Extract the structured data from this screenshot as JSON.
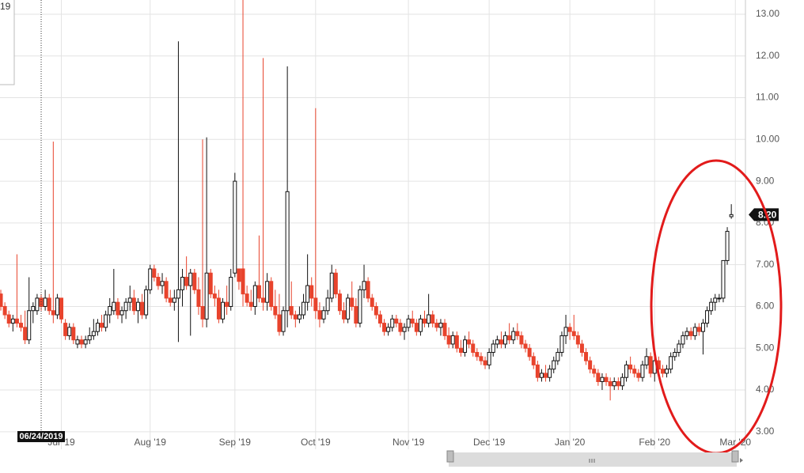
{
  "chart_data": {
    "type": "candlestick",
    "xlim": [
      -0.2,
      184.5
    ],
    "ylim": [
      2.58,
      13.34
    ],
    "xticks": [
      {
        "value": 15,
        "label": "Jul '19"
      },
      {
        "value": 37,
        "label": "Aug '19"
      },
      {
        "value": 58,
        "label": "Sep '19"
      },
      {
        "value": 78,
        "label": "Oct '19"
      },
      {
        "value": 101,
        "label": "Nov '19"
      },
      {
        "value": 121,
        "label": "Dec '19"
      },
      {
        "value": 141,
        "label": "Jan '20"
      },
      {
        "value": 162,
        "label": "Feb '20"
      },
      {
        "value": 182,
        "label": "Mar '20"
      }
    ],
    "yticks": [
      {
        "value": 3,
        "label": "3.00"
      },
      {
        "value": 4,
        "label": "4.00"
      },
      {
        "value": 5,
        "label": "5.00"
      },
      {
        "value": 6,
        "label": "6.00"
      },
      {
        "value": 7,
        "label": "7.00"
      },
      {
        "value": 8,
        "label": "8.00"
      },
      {
        "value": 9,
        "label": "9.00"
      },
      {
        "value": 10,
        "label": "10.00"
      },
      {
        "value": 11,
        "label": "11.00"
      },
      {
        "value": 12,
        "label": "12.00"
      },
      {
        "value": 13,
        "label": "13.00"
      }
    ],
    "grid": true,
    "up_color": "#ffffff",
    "down_color": "#e8432c",
    "last_price": {
      "value": 8.2,
      "label": "8.20"
    },
    "crosshair": {
      "x": 10,
      "label": "06/24/2019"
    },
    "info_box_text": "19",
    "candles": [
      [
        6.3,
        6.4,
        5.9,
        6.0
      ],
      [
        6.0,
        6.1,
        5.7,
        5.8
      ],
      [
        5.8,
        5.9,
        5.5,
        5.6
      ],
      [
        5.6,
        5.8,
        5.4,
        5.7
      ],
      [
        5.7,
        7.25,
        5.5,
        5.6
      ],
      [
        5.6,
        5.8,
        5.4,
        5.5
      ],
      [
        5.5,
        5.9,
        5.1,
        5.2
      ],
      [
        5.2,
        6.7,
        5.1,
        5.9
      ],
      [
        5.9,
        6.1,
        5.6,
        6.0
      ],
      [
        5.9,
        6.3,
        5.8,
        6.2
      ],
      [
        6.2,
        6.3,
        5.9,
        6.0
      ],
      [
        6.0,
        6.4,
        5.9,
        6.2
      ],
      [
        6.2,
        6.3,
        5.8,
        5.9
      ],
      [
        5.9,
        9.95,
        5.6,
        5.8
      ],
      [
        5.8,
        6.3,
        5.7,
        6.2
      ],
      [
        6.2,
        6.2,
        5.6,
        5.7
      ],
      [
        5.6,
        5.7,
        5.2,
        5.3
      ],
      [
        5.3,
        5.6,
        5.2,
        5.5
      ],
      [
        5.5,
        5.6,
        5.1,
        5.2
      ],
      [
        5.1,
        5.3,
        5.0,
        5.2
      ],
      [
        5.2,
        5.3,
        5.0,
        5.1
      ],
      [
        5.1,
        5.3,
        5.0,
        5.2
      ],
      [
        5.2,
        5.5,
        5.1,
        5.3
      ],
      [
        5.3,
        5.7,
        5.2,
        5.4
      ],
      [
        5.4,
        5.7,
        5.3,
        5.6
      ],
      [
        5.6,
        5.8,
        5.4,
        5.5
      ],
      [
        5.5,
        5.9,
        5.4,
        5.8
      ],
      [
        5.8,
        6.2,
        5.6,
        6.0
      ],
      [
        5.9,
        6.9,
        5.8,
        6.1
      ],
      [
        6.1,
        6.2,
        5.7,
        5.8
      ],
      [
        5.8,
        6.0,
        5.6,
        5.9
      ],
      [
        5.9,
        6.2,
        5.7,
        6.1
      ],
      [
        6.1,
        6.5,
        5.9,
        6.2
      ],
      [
        6.2,
        6.4,
        5.8,
        5.9
      ],
      [
        5.9,
        6.2,
        5.6,
        6.1
      ],
      [
        6.1,
        6.3,
        5.7,
        5.8
      ],
      [
        5.8,
        6.5,
        5.7,
        6.4
      ],
      [
        6.4,
        7.0,
        6.3,
        6.9
      ],
      [
        6.9,
        7.0,
        6.6,
        6.7
      ],
      [
        6.7,
        6.8,
        6.4,
        6.5
      ],
      [
        6.5,
        6.8,
        6.3,
        6.6
      ],
      [
        6.6,
        6.7,
        6.1,
        6.2
      ],
      [
        6.2,
        6.4,
        6.0,
        6.1
      ],
      [
        6.1,
        6.4,
        5.9,
        6.2
      ],
      [
        6.2,
        12.35,
        5.15,
        6.4
      ],
      [
        6.4,
        6.9,
        6.0,
        6.7
      ],
      [
        6.7,
        7.2,
        6.4,
        6.5
      ],
      [
        6.5,
        6.9,
        5.3,
        6.8
      ],
      [
        6.8,
        6.9,
        6.3,
        6.4
      ],
      [
        6.4,
        6.7,
        5.8,
        6.0
      ],
      [
        6.0,
        10.0,
        5.5,
        5.7
      ],
      [
        5.7,
        10.05,
        5.5,
        6.8
      ],
      [
        6.8,
        6.9,
        6.2,
        6.3
      ],
      [
        6.3,
        6.5,
        6.0,
        6.2
      ],
      [
        6.2,
        6.4,
        5.6,
        5.7
      ],
      [
        5.7,
        6.2,
        5.6,
        6.1
      ],
      [
        6.1,
        6.5,
        5.8,
        6.0
      ],
      [
        6.0,
        6.9,
        5.9,
        6.7
      ],
      [
        6.8,
        9.2,
        6.7,
        9.0
      ],
      [
        6.9,
        6.9,
        6.4,
        6.6
      ],
      [
        6.9,
        13.34,
        6.0,
        6.3
      ],
      [
        6.3,
        6.5,
        6.0,
        6.1
      ],
      [
        6.1,
        6.4,
        5.9,
        6.0
      ],
      [
        6.0,
        6.6,
        5.8,
        6.5
      ],
      [
        6.5,
        7.7,
        6.1,
        6.2
      ],
      [
        6.2,
        11.95,
        5.9,
        6.1
      ],
      [
        6.1,
        6.8,
        5.9,
        6.6
      ],
      [
        6.6,
        6.7,
        5.9,
        6.0
      ],
      [
        6.0,
        6.4,
        5.7,
        5.8
      ],
      [
        5.8,
        6.3,
        5.3,
        5.4
      ],
      [
        5.4,
        6.0,
        5.3,
        5.9
      ],
      [
        5.9,
        11.75,
        5.5,
        8.75
      ],
      [
        6.0,
        6.6,
        5.7,
        5.8
      ],
      [
        5.8,
        5.9,
        5.5,
        5.7
      ],
      [
        5.7,
        6.0,
        5.6,
        5.8
      ],
      [
        5.8,
        6.3,
        5.7,
        6.1
      ],
      [
        6.1,
        7.25,
        5.9,
        6.5
      ],
      [
        6.5,
        6.7,
        6.0,
        6.2
      ],
      [
        6.2,
        10.75,
        5.7,
        5.9
      ],
      [
        5.9,
        6.1,
        5.5,
        5.7
      ],
      [
        5.7,
        6.0,
        5.6,
        5.9
      ],
      [
        5.9,
        6.4,
        5.8,
        6.2
      ],
      [
        6.2,
        7.0,
        6.1,
        6.8
      ],
      [
        6.8,
        6.9,
        6.2,
        6.3
      ],
      [
        6.3,
        6.4,
        5.8,
        5.9
      ],
      [
        5.9,
        6.1,
        5.6,
        5.7
      ],
      [
        5.7,
        6.3,
        5.6,
        6.2
      ],
      [
        6.2,
        6.6,
        5.9,
        6.0
      ],
      [
        6.0,
        6.2,
        5.5,
        5.6
      ],
      [
        5.6,
        6.5,
        5.5,
        6.4
      ],
      [
        6.4,
        7.0,
        6.2,
        6.6
      ],
      [
        6.6,
        6.7,
        6.1,
        6.2
      ],
      [
        6.2,
        6.3,
        5.9,
        6.0
      ],
      [
        6.0,
        6.1,
        5.7,
        5.8
      ],
      [
        5.8,
        5.9,
        5.5,
        5.6
      ],
      [
        5.6,
        5.7,
        5.3,
        5.4
      ],
      [
        5.4,
        5.6,
        5.3,
        5.5
      ],
      [
        5.5,
        5.8,
        5.4,
        5.7
      ],
      [
        5.7,
        5.8,
        5.5,
        5.6
      ],
      [
        5.6,
        5.7,
        5.3,
        5.4
      ],
      [
        5.4,
        5.6,
        5.2,
        5.5
      ],
      [
        5.5,
        5.8,
        5.4,
        5.7
      ],
      [
        5.7,
        5.9,
        5.5,
        5.6
      ],
      [
        5.6,
        5.7,
        5.3,
        5.4
      ],
      [
        5.4,
        5.8,
        5.3,
        5.7
      ],
      [
        5.7,
        5.9,
        5.5,
        5.6
      ],
      [
        5.6,
        6.3,
        5.5,
        5.8
      ],
      [
        5.8,
        5.9,
        5.5,
        5.6
      ],
      [
        5.6,
        5.7,
        5.4,
        5.5
      ],
      [
        5.5,
        5.7,
        5.3,
        5.6
      ],
      [
        5.6,
        5.7,
        5.2,
        5.3
      ],
      [
        5.3,
        5.5,
        5.0,
        5.1
      ],
      [
        5.1,
        5.4,
        5.0,
        5.3
      ],
      [
        5.3,
        5.4,
        4.9,
        5.0
      ],
      [
        5.0,
        5.2,
        4.8,
        4.9
      ],
      [
        4.9,
        5.3,
        4.8,
        5.2
      ],
      [
        5.2,
        5.4,
        5.0,
        5.1
      ],
      [
        5.1,
        5.2,
        4.8,
        4.9
      ],
      [
        4.9,
        5.0,
        4.7,
        4.8
      ],
      [
        4.8,
        4.9,
        4.6,
        4.7
      ],
      [
        4.7,
        4.8,
        4.5,
        4.6
      ],
      [
        4.6,
        5.0,
        4.5,
        4.9
      ],
      [
        4.9,
        5.2,
        4.8,
        5.1
      ],
      [
        5.1,
        5.3,
        5.0,
        5.2
      ],
      [
        5.2,
        5.4,
        5.0,
        5.1
      ],
      [
        5.1,
        5.4,
        5.0,
        5.3
      ],
      [
        5.3,
        5.6,
        5.1,
        5.2
      ],
      [
        5.2,
        5.5,
        5.1,
        5.4
      ],
      [
        5.4,
        5.6,
        5.2,
        5.3
      ],
      [
        5.3,
        5.4,
        5.0,
        5.1
      ],
      [
        5.1,
        5.2,
        4.9,
        5.0
      ],
      [
        5.0,
        5.1,
        4.7,
        4.8
      ],
      [
        4.8,
        4.9,
        4.5,
        4.6
      ],
      [
        4.6,
        4.7,
        4.2,
        4.3
      ],
      [
        4.3,
        4.5,
        4.2,
        4.4
      ],
      [
        4.4,
        4.6,
        4.2,
        4.3
      ],
      [
        4.3,
        4.6,
        4.2,
        4.5
      ],
      [
        4.5,
        4.8,
        4.4,
        4.7
      ],
      [
        4.7,
        5.0,
        4.6,
        4.9
      ],
      [
        4.9,
        5.4,
        4.8,
        5.3
      ],
      [
        5.3,
        5.8,
        5.1,
        5.5
      ],
      [
        5.5,
        5.6,
        5.2,
        5.4
      ],
      [
        5.4,
        5.8,
        5.2,
        5.3
      ],
      [
        5.3,
        5.4,
        5.0,
        5.1
      ],
      [
        5.1,
        5.2,
        4.8,
        4.9
      ],
      [
        4.9,
        5.0,
        4.6,
        4.7
      ],
      [
        4.7,
        4.8,
        4.4,
        4.5
      ],
      [
        4.5,
        4.6,
        4.3,
        4.4
      ],
      [
        4.4,
        4.5,
        4.1,
        4.2
      ],
      [
        4.2,
        4.4,
        4.0,
        4.3
      ],
      [
        4.3,
        4.4,
        4.1,
        4.2
      ],
      [
        4.2,
        4.3,
        3.75,
        4.1
      ],
      [
        4.1,
        4.3,
        4.0,
        4.2
      ],
      [
        4.2,
        4.3,
        4.0,
        4.1
      ],
      [
        4.1,
        4.4,
        4.0,
        4.3
      ],
      [
        4.3,
        4.7,
        4.2,
        4.6
      ],
      [
        4.6,
        4.8,
        4.4,
        4.5
      ],
      [
        4.5,
        4.6,
        4.3,
        4.4
      ],
      [
        4.4,
        4.5,
        4.2,
        4.3
      ],
      [
        4.3,
        4.7,
        4.2,
        4.6
      ],
      [
        4.6,
        5.0,
        4.5,
        4.8
      ],
      [
        4.8,
        4.9,
        4.3,
        4.4
      ],
      [
        4.4,
        4.8,
        4.2,
        4.7
      ],
      [
        4.7,
        4.8,
        4.4,
        4.5
      ],
      [
        4.5,
        4.6,
        4.3,
        4.4
      ],
      [
        4.4,
        4.6,
        4.3,
        4.5
      ],
      [
        4.5,
        4.9,
        4.4,
        4.8
      ],
      [
        4.8,
        5.0,
        4.7,
        4.9
      ],
      [
        4.9,
        5.2,
        4.8,
        5.1
      ],
      [
        5.1,
        5.4,
        5.0,
        5.3
      ],
      [
        5.3,
        5.5,
        5.2,
        5.4
      ],
      [
        5.4,
        5.5,
        5.2,
        5.3
      ],
      [
        5.3,
        5.6,
        5.2,
        5.5
      ],
      [
        5.5,
        5.6,
        5.3,
        5.4
      ],
      [
        5.4,
        5.7,
        4.85,
        5.6
      ],
      [
        5.6,
        6.0,
        5.5,
        5.9
      ],
      [
        5.9,
        6.2,
        5.8,
        6.1
      ],
      [
        6.1,
        6.3,
        5.9,
        6.2
      ],
      [
        6.2,
        6.3,
        6.1,
        6.2
      ],
      [
        6.2,
        7.1,
        6.1,
        7.1
      ],
      [
        7.1,
        7.9,
        7.0,
        7.8
      ],
      [
        8.15,
        8.45,
        8.1,
        8.2
      ]
    ]
  }
}
